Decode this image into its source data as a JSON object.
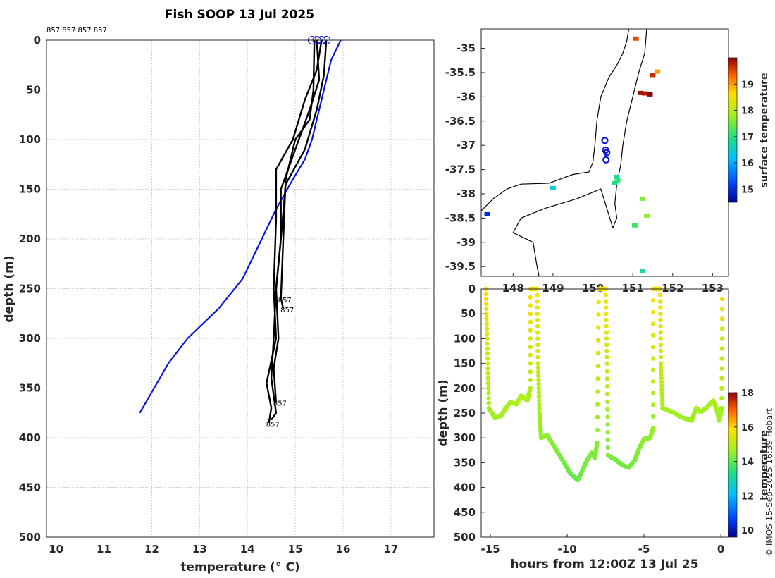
{
  "title": "Fish SOOP 13 Jul 2025",
  "top_ids": "857 857 857 857",
  "credit": "© IMOS 15-Sep-2025 16:39 Hobart",
  "colors": {
    "profile": "#000000",
    "climatology": "#0a14d8",
    "coast": "#000000"
  },
  "chart_data": [
    {
      "type": "line",
      "name": "temperature-profile",
      "xlabel": "temperature (° C)",
      "ylabel": "depth (m)",
      "xlim": [
        9.8,
        17.9
      ],
      "ylim": [
        500,
        0
      ],
      "xticks": [
        10,
        11,
        12,
        13,
        14,
        15,
        16,
        17
      ],
      "yticks": [
        0,
        50,
        100,
        150,
        200,
        250,
        300,
        350,
        400,
        450,
        500
      ],
      "grid": true,
      "series": [
        {
          "name": "climatology",
          "color": "#0a14d8",
          "points": [
            [
              15.95,
              0
            ],
            [
              15.85,
              10
            ],
            [
              15.75,
              20
            ],
            [
              15.65,
              40
            ],
            [
              15.55,
              60
            ],
            [
              15.45,
              80
            ],
            [
              15.35,
              100
            ],
            [
              15.2,
              120
            ],
            [
              14.95,
              140
            ],
            [
              14.6,
              170
            ],
            [
              14.3,
              200
            ],
            [
              13.9,
              240
            ],
            [
              13.4,
              270
            ],
            [
              12.75,
              300
            ],
            [
              12.35,
              325
            ],
            [
              12.05,
              350
            ],
            [
              11.75,
              375
            ]
          ]
        },
        {
          "name": "profile-1",
          "color": "#000000",
          "points": [
            [
              15.4,
              0
            ],
            [
              15.38,
              50
            ],
            [
              15.3,
              80
            ],
            [
              15.0,
              100
            ],
            [
              14.8,
              140
            ],
            [
              14.75,
              200
            ],
            [
              14.7,
              260
            ],
            [
              14.75,
              270
            ]
          ]
        },
        {
          "name": "profile-2",
          "color": "#000000",
          "points": [
            [
              15.45,
              0
            ],
            [
              15.5,
              40
            ],
            [
              15.3,
              70
            ],
            [
              15.0,
              110
            ],
            [
              14.7,
              150
            ],
            [
              14.7,
              200
            ],
            [
              14.6,
              250
            ],
            [
              14.65,
              300
            ],
            [
              14.55,
              330
            ],
            [
              14.6,
              365
            ]
          ]
        },
        {
          "name": "profile-3",
          "color": "#000000",
          "points": [
            [
              15.55,
              0
            ],
            [
              15.45,
              30
            ],
            [
              15.2,
              60
            ],
            [
              14.95,
              100
            ],
            [
              14.6,
              130
            ],
            [
              14.6,
              180
            ],
            [
              14.55,
              250
            ],
            [
              14.6,
              300
            ],
            [
              14.4,
              345
            ],
            [
              14.5,
              370
            ],
            [
              14.45,
              385
            ]
          ]
        },
        {
          "name": "profile-4",
          "color": "#000000",
          "points": [
            [
              15.65,
              0
            ],
            [
              15.6,
              35
            ],
            [
              15.45,
              70
            ],
            [
              15.2,
              110
            ],
            [
              14.8,
              145
            ],
            [
              14.7,
              200
            ],
            [
              14.6,
              250
            ],
            [
              14.55,
              300
            ],
            [
              14.5,
              340
            ],
            [
              14.6,
              375
            ],
            [
              14.5,
              382
            ]
          ]
        }
      ],
      "start_markers": [
        15.35,
        15.45,
        15.55,
        15.65
      ],
      "annotations": [
        {
          "text": "857",
          "x": 14.7,
          "y": 261
        },
        {
          "text": "857",
          "x": 14.75,
          "y": 271
        },
        {
          "text": "857",
          "x": 14.6,
          "y": 365
        },
        {
          "text": "857",
          "x": 14.45,
          "y": 386
        }
      ]
    },
    {
      "type": "scatter",
      "name": "surface-temperature-map",
      "xlim": [
        147.2,
        153.4
      ],
      "ylim": [
        -39.7,
        -34.6
      ],
      "xticks": [
        148,
        149,
        150,
        151,
        152,
        153
      ],
      "xtick_labels": [
        "148",
        "149",
        "150",
        "151",
        "152",
        "153"
      ],
      "yticks": [
        -35,
        -35.5,
        -36,
        -36.5,
        -37,
        -37.5,
        -38,
        -38.5,
        -39,
        -39.5
      ],
      "colorbar": {
        "label": "surface temperature",
        "range": [
          14.5,
          20.0
        ],
        "ticks": [
          15,
          16,
          17,
          18,
          19
        ]
      },
      "track": [
        [
          150.3,
          -36.9
        ],
        [
          150.32,
          -37.1
        ],
        [
          150.35,
          -37.15
        ],
        [
          150.33,
          -37.3
        ]
      ],
      "cells": [
        {
          "lon": 151.3,
          "lat": -35.93,
          "t": 19.8
        },
        {
          "lon": 151.2,
          "lat": -35.92,
          "t": 19.9
        },
        {
          "lon": 151.43,
          "lat": -35.95,
          "t": 20.0
        },
        {
          "lon": 151.5,
          "lat": -35.55,
          "t": 19.7
        },
        {
          "lon": 151.62,
          "lat": -35.48,
          "t": 19.0
        },
        {
          "lon": 151.08,
          "lat": -34.8,
          "t": 19.5
        },
        {
          "lon": 150.6,
          "lat": -37.65,
          "t": 16.8
        },
        {
          "lon": 150.62,
          "lat": -37.72,
          "t": 17.1
        },
        {
          "lon": 150.55,
          "lat": -37.78,
          "t": 16.9
        },
        {
          "lon": 149.0,
          "lat": -37.88,
          "t": 16.5
        },
        {
          "lon": 147.35,
          "lat": -38.42,
          "t": 15.0
        },
        {
          "lon": 151.25,
          "lat": -38.1,
          "t": 17.6
        },
        {
          "lon": 151.35,
          "lat": -38.45,
          "t": 17.7
        },
        {
          "lon": 151.05,
          "lat": -38.65,
          "t": 17.2
        },
        {
          "lon": 151.25,
          "lat": -39.6,
          "t": 16.8
        }
      ],
      "coast": [
        [
          147.2,
          -38.35
        ],
        [
          147.5,
          -38.1
        ],
        [
          147.85,
          -37.9
        ],
        [
          148.2,
          -37.8
        ],
        [
          148.9,
          -37.78
        ],
        [
          149.5,
          -37.6
        ],
        [
          149.9,
          -37.55
        ],
        [
          150.0,
          -37.35
        ],
        [
          150.05,
          -37.0
        ],
        [
          150.1,
          -36.5
        ],
        [
          150.2,
          -36.0
        ],
        [
          150.4,
          -35.6
        ],
        [
          150.6,
          -35.35
        ],
        [
          150.75,
          -35.1
        ],
        [
          150.85,
          -34.85
        ],
        [
          150.9,
          -34.6
        ]
      ],
      "shelf": [
        [
          150.5,
          -38.7
        ],
        [
          150.6,
          -38.5
        ],
        [
          150.55,
          -38.2
        ],
        [
          150.6,
          -37.8
        ],
        [
          150.7,
          -37.4
        ],
        [
          150.75,
          -37.0
        ],
        [
          150.85,
          -36.5
        ],
        [
          151.0,
          -36.0
        ],
        [
          151.15,
          -35.5
        ],
        [
          151.3,
          -35.1
        ],
        [
          151.35,
          -34.6
        ]
      ],
      "bass_shelf": [
        [
          150.5,
          -38.7
        ],
        [
          150.2,
          -37.9
        ],
        [
          149.6,
          -38.1
        ],
        [
          148.8,
          -38.3
        ],
        [
          148.2,
          -38.5
        ],
        [
          148.0,
          -38.8
        ],
        [
          148.5,
          -39.0
        ],
        [
          148.6,
          -39.5
        ],
        [
          148.65,
          -39.7
        ]
      ]
    },
    {
      "type": "scatter",
      "name": "depth-time-section",
      "xlabel": "hours from 12:00Z 13 Jul 25",
      "ylabel": "depth (m)",
      "xlim": [
        -15.6,
        0.5
      ],
      "ylim": [
        500,
        0
      ],
      "xticks": [
        -15,
        -10,
        -5,
        0
      ],
      "yticks": [
        0,
        50,
        100,
        150,
        200,
        250,
        300,
        350,
        400,
        450,
        500
      ],
      "colorbar": {
        "label": "temperature",
        "range": [
          9.6,
          18.0
        ],
        "ticks": [
          10,
          12,
          14,
          16,
          18
        ]
      },
      "points": [
        [
          -15.3,
          0
        ],
        [
          -15.2,
          120
        ],
        [
          -15.1,
          240
        ],
        [
          -14.7,
          260
        ],
        [
          -14.3,
          255
        ],
        [
          -14.0,
          240
        ],
        [
          -13.7,
          228
        ],
        [
          -13.3,
          232
        ],
        [
          -13.0,
          215
        ],
        [
          -12.6,
          225
        ],
        [
          -12.4,
          200
        ],
        [
          -12.4,
          0
        ],
        [
          -11.95,
          0
        ],
        [
          -11.9,
          150
        ],
        [
          -11.8,
          250
        ],
        [
          -11.7,
          300
        ],
        [
          -11.3,
          295
        ],
        [
          -11.0,
          310
        ],
        [
          -10.6,
          330
        ],
        [
          -10.2,
          350
        ],
        [
          -9.8,
          372
        ],
        [
          -9.3,
          385
        ],
        [
          -9.0,
          365
        ],
        [
          -8.7,
          345
        ],
        [
          -8.4,
          330
        ],
        [
          -8.2,
          340
        ],
        [
          -8.05,
          310
        ],
        [
          -7.95,
          0
        ],
        [
          -7.5,
          0
        ],
        [
          -7.4,
          150
        ],
        [
          -7.35,
          335
        ],
        [
          -6.8,
          345
        ],
        [
          -6.4,
          355
        ],
        [
          -6.0,
          360
        ],
        [
          -5.6,
          345
        ],
        [
          -5.3,
          320
        ],
        [
          -5.0,
          302
        ],
        [
          -4.6,
          300
        ],
        [
          -4.4,
          280
        ],
        [
          -4.4,
          0
        ],
        [
          -3.95,
          0
        ],
        [
          -3.9,
          150
        ],
        [
          -3.8,
          240
        ],
        [
          -3.4,
          245
        ],
        [
          -3.0,
          250
        ],
        [
          -2.6,
          258
        ],
        [
          -2.2,
          262
        ],
        [
          -1.9,
          265
        ],
        [
          -1.6,
          240
        ],
        [
          -1.3,
          248
        ],
        [
          -0.9,
          238
        ],
        [
          -0.5,
          225
        ],
        [
          -0.3,
          240
        ],
        [
          -0.1,
          265
        ],
        [
          0.05,
          240
        ],
        [
          0.1,
          0
        ]
      ]
    }
  ]
}
